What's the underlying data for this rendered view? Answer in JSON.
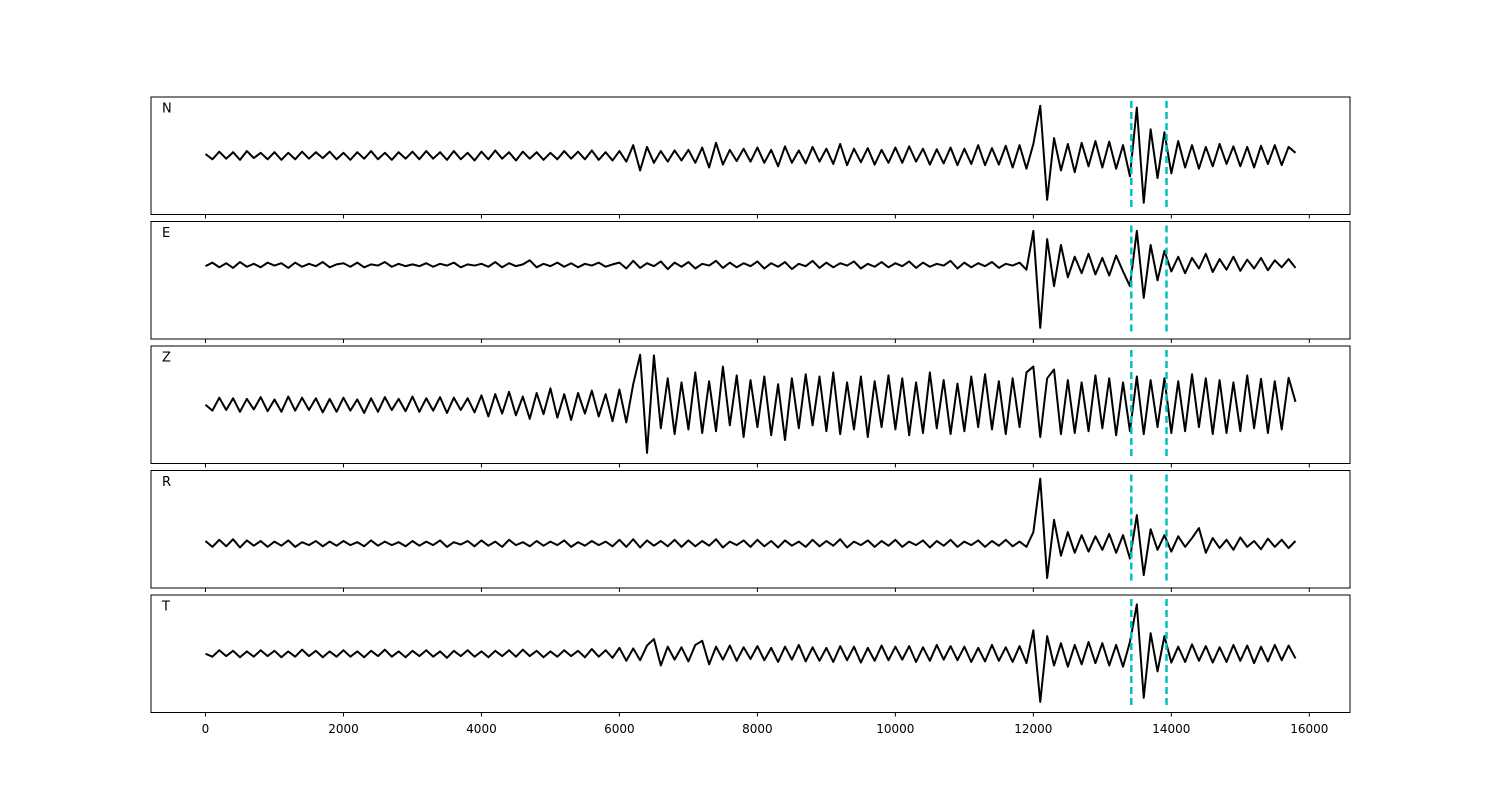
{
  "chart_data": {
    "type": "line",
    "x": [
      0,
      100,
      200,
      300,
      400,
      500,
      600,
      700,
      800,
      900,
      1000,
      1100,
      1200,
      1300,
      1400,
      1500,
      1600,
      1700,
      1800,
      1900,
      2000,
      2100,
      2200,
      2300,
      2400,
      2500,
      2600,
      2700,
      2800,
      2900,
      3000,
      3100,
      3200,
      3300,
      3400,
      3500,
      3600,
      3700,
      3800,
      3900,
      4000,
      4100,
      4200,
      4300,
      4400,
      4500,
      4600,
      4700,
      4800,
      4900,
      5000,
      5100,
      5200,
      5300,
      5400,
      5500,
      5600,
      5700,
      5800,
      5900,
      6000,
      6100,
      6200,
      6300,
      6400,
      6500,
      6600,
      6700,
      6800,
      6900,
      7000,
      7100,
      7200,
      7300,
      7400,
      7500,
      7600,
      7700,
      7800,
      7900,
      8000,
      8100,
      8200,
      8300,
      8400,
      8500,
      8600,
      8700,
      8800,
      8900,
      9000,
      9100,
      9200,
      9300,
      9400,
      9500,
      9600,
      9700,
      9800,
      9900,
      10000,
      10100,
      10200,
      10300,
      10400,
      10500,
      10600,
      10700,
      10800,
      10900,
      11000,
      11100,
      11200,
      11300,
      11400,
      11500,
      11600,
      11700,
      11800,
      11900,
      12000,
      12100,
      12200,
      12300,
      12400,
      12500,
      12600,
      12700,
      12800,
      12900,
      13000,
      13100,
      13200,
      13300,
      13400,
      13500,
      13600,
      13700,
      13800,
      13900,
      14000,
      14100,
      14200,
      14300,
      14400,
      14500,
      14600,
      14700,
      14800,
      14900,
      15000,
      15100,
      15200,
      15300,
      15400,
      15500,
      15600,
      15700,
      15800
    ],
    "series": [
      {
        "name": "N",
        "color": "#000000",
        "values": [
          3,
          -6,
          7,
          -5,
          6,
          -7,
          8,
          -4,
          5,
          -6,
          6,
          -7,
          5,
          -6,
          7,
          -5,
          6,
          -4,
          7,
          -6,
          5,
          -7,
          6,
          -5,
          8,
          -6,
          5,
          -7,
          6,
          -5,
          7,
          -6,
          8,
          -5,
          6,
          -7,
          8,
          -6,
          5,
          -8,
          7,
          -6,
          9,
          -5,
          6,
          -8,
          7,
          -5,
          6,
          -7,
          5,
          -6,
          8,
          -5,
          7,
          -6,
          9,
          -7,
          6,
          -8,
          8,
          -10,
          18,
          -25,
          15,
          -12,
          8,
          -10,
          9,
          -8,
          10,
          -12,
          14,
          -20,
          22,
          -15,
          10,
          -9,
          12,
          -10,
          14,
          -12,
          10,
          -18,
          16,
          -12,
          9,
          -13,
          15,
          -10,
          12,
          -14,
          20,
          -16,
          12,
          -11,
          13,
          -15,
          10,
          -12,
          14,
          -12,
          16,
          -10,
          12,
          -15,
          11,
          -13,
          14,
          -16,
          12,
          -14,
          18,
          -16,
          13,
          -15,
          17,
          -20,
          18,
          -22,
          20,
          85,
          -75,
          30,
          -25,
          20,
          -28,
          22,
          -18,
          25,
          -20,
          24,
          -22,
          18,
          -35,
          82,
          -80,
          45,
          -38,
          40,
          -30,
          25,
          -20,
          18,
          -22,
          15,
          -18,
          20,
          -14,
          16,
          -18,
          15,
          -20,
          17,
          -14,
          18,
          -16,
          15,
          5
        ]
      },
      {
        "name": "E",
        "color": "#000000",
        "values": [
          24,
          30,
          22,
          29,
          21,
          31,
          23,
          28,
          22,
          30,
          25,
          29,
          21,
          30,
          23,
          28,
          24,
          31,
          22,
          27,
          29,
          23,
          30,
          22,
          27,
          25,
          31,
          23,
          28,
          24,
          27,
          24,
          29,
          23,
          28,
          25,
          30,
          22,
          27,
          25,
          28,
          23,
          31,
          22,
          29,
          24,
          27,
          34,
          22,
          28,
          24,
          30,
          23,
          29,
          22,
          28,
          25,
          30,
          23,
          27,
          30,
          20,
          33,
          21,
          29,
          24,
          32,
          19,
          30,
          23,
          31,
          20,
          28,
          25,
          33,
          21,
          30,
          22,
          29,
          24,
          32,
          20,
          29,
          23,
          31,
          19,
          28,
          24,
          33,
          21,
          30,
          22,
          29,
          25,
          32,
          20,
          28,
          23,
          31,
          22,
          29,
          24,
          32,
          21,
          30,
          23,
          28,
          25,
          33,
          20,
          30,
          22,
          29,
          24,
          31,
          21,
          28,
          25,
          30,
          18,
          84,
          -81,
          70,
          -10,
          60,
          5,
          40,
          12,
          45,
          10,
          38,
          8,
          42,
          15,
          -10,
          84,
          -30,
          60,
          0,
          50,
          15,
          40,
          12,
          38,
          20,
          45,
          14,
          36,
          18,
          40,
          16,
          35,
          20,
          38,
          17,
          34,
          22,
          36,
          21
        ]
      },
      {
        "name": "Z",
        "color": "#000000",
        "values": [
          0,
          -10,
          12,
          -9,
          11,
          -12,
          10,
          -8,
          13,
          -11,
          9,
          -12,
          14,
          -10,
          12,
          -9,
          11,
          -13,
          10,
          -12,
          12,
          -10,
          9,
          -14,
          11,
          -12,
          13,
          -9,
          10,
          -11,
          14,
          -12,
          11,
          -10,
          13,
          -14,
          12,
          -9,
          11,
          -13,
          16,
          -20,
          18,
          -15,
          22,
          -18,
          14,
          -24,
          20,
          -16,
          28,
          -22,
          18,
          -26,
          20,
          -15,
          24,
          -20,
          18,
          -28,
          26,
          -30,
          35,
          85,
          -82,
          84,
          -40,
          45,
          -50,
          38,
          -42,
          55,
          -48,
          40,
          -45,
          65,
          -35,
          50,
          -55,
          42,
          -38,
          48,
          -52,
          35,
          -60,
          45,
          -40,
          52,
          -35,
          48,
          -45,
          55,
          -50,
          38,
          -42,
          48,
          -55,
          40,
          -38,
          50,
          -42,
          45,
          -52,
          38,
          -48,
          55,
          -40,
          42,
          -50,
          36,
          -45,
          48,
          -38,
          52,
          -42,
          40,
          -50,
          45,
          -38,
          55,
          65,
          -55,
          45,
          60,
          -50,
          42,
          -48,
          38,
          -45,
          50,
          -40,
          45,
          -52,
          38,
          -45,
          48,
          -50,
          42,
          -38,
          45,
          -48,
          40,
          -45,
          52,
          -38,
          45,
          -50,
          42,
          -48,
          38,
          -45,
          50,
          -40,
          44,
          -48,
          40,
          -42,
          46,
          5
        ]
      },
      {
        "name": "R",
        "color": "#000000",
        "values": [
          -20,
          -30,
          -18,
          -29,
          -17,
          -31,
          -19,
          -28,
          -20,
          -30,
          -21,
          -28,
          -19,
          -30,
          -22,
          -27,
          -20,
          -29,
          -21,
          -28,
          -20,
          -27,
          -22,
          -29,
          -19,
          -28,
          -21,
          -27,
          -22,
          -29,
          -20,
          -28,
          -21,
          -27,
          -19,
          -30,
          -22,
          -26,
          -20,
          -29,
          -19,
          -28,
          -21,
          -30,
          -18,
          -27,
          -22,
          -29,
          -20,
          -28,
          -21,
          -27,
          -19,
          -30,
          -22,
          -28,
          -20,
          -27,
          -21,
          -29,
          -18,
          -30,
          -17,
          -31,
          -19,
          -28,
          -20,
          -29,
          -18,
          -30,
          -19,
          -29,
          -20,
          -28,
          -17,
          -31,
          -21,
          -27,
          -19,
          -30,
          -18,
          -29,
          -20,
          -31,
          -19,
          -28,
          -21,
          -30,
          -18,
          -29,
          -20,
          -28,
          -17,
          -31,
          -21,
          -27,
          -19,
          -30,
          -20,
          -28,
          -18,
          -30,
          -21,
          -27,
          -19,
          -31,
          -20,
          -28,
          -18,
          -30,
          -21,
          -27,
          -19,
          -30,
          -20,
          -28,
          -18,
          -29,
          -21,
          -30,
          -5,
          86,
          -83,
          16,
          -45,
          -5,
          -40,
          -10,
          -38,
          -12,
          -35,
          -8,
          -40,
          -10,
          -50,
          24,
          -78,
          0,
          -35,
          -10,
          -38,
          -12,
          -30,
          -15,
          2,
          -40,
          -15,
          -32,
          -18,
          -35,
          -14,
          -30,
          -20,
          -34,
          -16,
          -30,
          -18,
          -32,
          -20
        ]
      },
      {
        "name": "T",
        "color": "#000000",
        "values": [
          0,
          -5,
          6,
          -4,
          5,
          -6,
          4,
          -5,
          6,
          -4,
          5,
          -6,
          4,
          -5,
          7,
          -4,
          5,
          -6,
          4,
          -5,
          6,
          -5,
          4,
          -6,
          5,
          -4,
          7,
          -5,
          4,
          -6,
          5,
          -4,
          6,
          -5,
          4,
          -7,
          5,
          -4,
          6,
          -5,
          4,
          -6,
          5,
          -4,
          6,
          -5,
          7,
          -4,
          5,
          -6,
          4,
          -5,
          6,
          -4,
          5,
          -6,
          8,
          -5,
          6,
          -7,
          10,
          -12,
          9,
          -11,
          14,
          25,
          -20,
          12,
          -10,
          11,
          -13,
          15,
          22,
          -18,
          12,
          -10,
          14,
          -12,
          11,
          -9,
          13,
          -11,
          10,
          -14,
          12,
          -10,
          15,
          -13,
          11,
          -12,
          10,
          -14,
          13,
          -11,
          12,
          -15,
          10,
          -12,
          14,
          -11,
          12,
          -10,
          13,
          -14,
          11,
          -12,
          15,
          -10,
          13,
          -11,
          12,
          -14,
          10,
          -13,
          15,
          -12,
          11,
          -14,
          13,
          -16,
          40,
          -82,
          30,
          -20,
          18,
          -22,
          15,
          -18,
          20,
          -16,
          18,
          -20,
          15,
          -22,
          20,
          84,
          -75,
          35,
          -30,
          30,
          -15,
          12,
          -14,
          16,
          -12,
          13,
          -15,
          11,
          -14,
          15,
          -12,
          14,
          -16,
          12,
          -13,
          15,
          -11,
          14,
          -8
        ]
      }
    ],
    "xlim": [
      -790,
      16590
    ],
    "xticks": [
      0,
      2000,
      4000,
      6000,
      8000,
      10000,
      12000,
      14000,
      16000
    ],
    "ylim": [
      -100,
      100
    ],
    "vlines": [
      13420,
      13930
    ],
    "vline_color": "#00bfbf"
  }
}
